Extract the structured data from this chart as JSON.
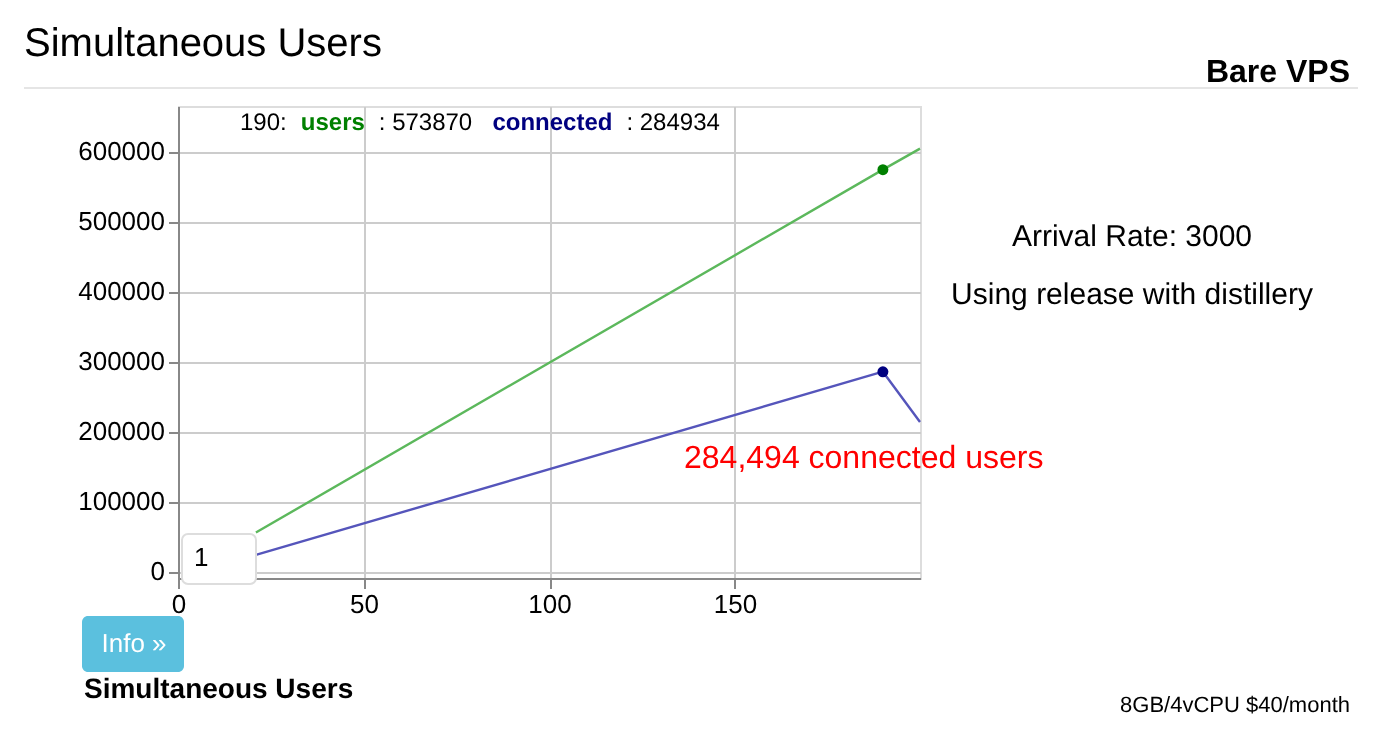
{
  "chart_data": {
    "type": "line",
    "title": "Simultaneous Users",
    "subtitle": "Bare VPS",
    "xlim": [
      0,
      200
    ],
    "xticks": [
      0,
      50,
      100,
      150
    ],
    "ylim": [
      -10000,
      665000
    ],
    "yticks": [
      0,
      100000,
      200000,
      300000,
      400000,
      500000,
      600000
    ],
    "grid": true,
    "legend": "top",
    "series": [
      {
        "color": "#5cb85c",
        "x": [
          21,
          190,
          200
        ],
        "values": [
          55000,
          574000,
          604000
        ]
      },
      {
        "color": "#5555bb",
        "x": [
          21,
          190,
          200
        ],
        "values": [
          23000,
          285000,
          213000
        ]
      },
      {
        "type": "scatter",
        "name": "users",
        "color": "#008000",
        "x": [
          190
        ],
        "values": [
          573870
        ]
      },
      {
        "type": "scatter",
        "name": "connected",
        "color": "#000080",
        "x": [
          190
        ],
        "values": [
          284934
        ]
      }
    ],
    "annotations": [
      "190:",
      ": 573870",
      ": 284934",
      "Arrival Rate: 3000",
      "Using release with distillery",
      "284,494 connected users",
      "1",
      "Info »",
      "Simultaneous Users",
      "8GB/4vCPU $40/month"
    ]
  }
}
